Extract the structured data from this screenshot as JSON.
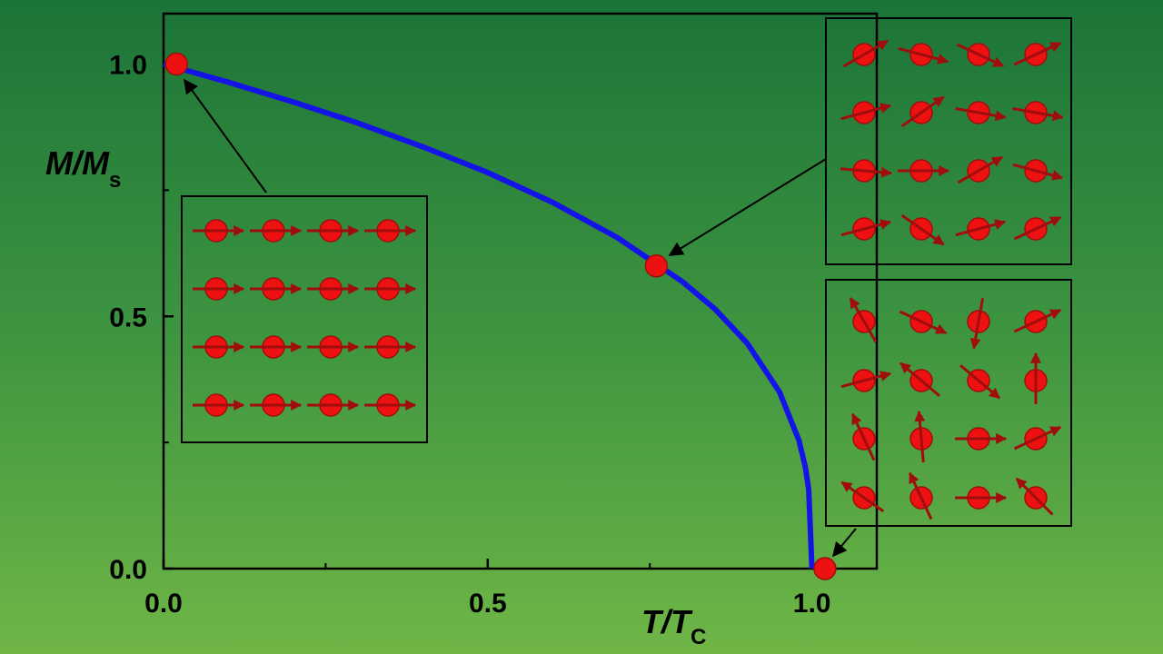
{
  "chart_data": {
    "type": "line",
    "x_label": "T/T",
    "x_label_sub": "C",
    "y_label": "M/M",
    "y_label_sub": "s",
    "x": [
      0,
      0.1,
      0.2,
      0.3,
      0.4,
      0.5,
      0.6,
      0.7,
      0.8,
      0.85,
      0.9,
      0.95,
      0.98,
      0.99,
      0.995,
      1.0
    ],
    "series": [
      {
        "color": "#1414e6",
        "values": [
          1.0,
          0.964,
          0.925,
          0.883,
          0.836,
          0.785,
          0.726,
          0.656,
          0.569,
          0.515,
          0.447,
          0.35,
          0.254,
          0.2,
          0.157,
          0
        ]
      }
    ],
    "points": {
      "color": "#ee1111",
      "x": [
        0.02,
        0.76,
        1.02
      ],
      "values": [
        1.0,
        0.6,
        0.0
      ]
    },
    "xlim": [
      0,
      1.1
    ],
    "ylim": [
      0,
      1.1
    ],
    "xticks": [
      {
        "value": 0,
        "label": "0.0"
      },
      {
        "value": 0.5,
        "label": "0.5"
      },
      {
        "value": 1,
        "label": "1.0"
      }
    ],
    "yticks": [
      {
        "value": 0,
        "label": "0.0"
      },
      {
        "value": 0.5,
        "label": "0.5"
      },
      {
        "value": 1,
        "label": "1.0"
      }
    ],
    "minor_xticks": [
      0.25,
      0.75
    ],
    "minor_yticks": [
      0.25,
      0.75
    ]
  }
}
